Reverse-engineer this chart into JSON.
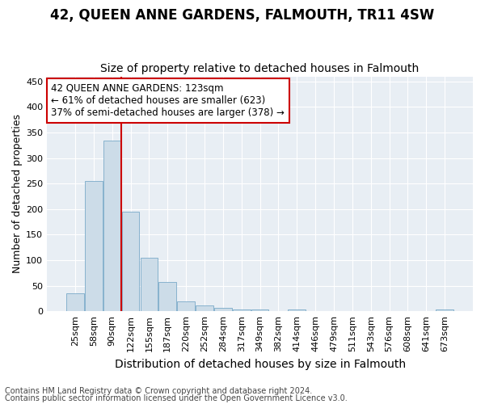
{
  "title": "42, QUEEN ANNE GARDENS, FALMOUTH, TR11 4SW",
  "subtitle": "Size of property relative to detached houses in Falmouth",
  "xlabel": "Distribution of detached houses by size in Falmouth",
  "ylabel": "Number of detached properties",
  "footnote1": "Contains HM Land Registry data © Crown copyright and database right 2024.",
  "footnote2": "Contains public sector information licensed under the Open Government Licence v3.0.",
  "bar_labels": [
    "25sqm",
    "58sqm",
    "90sqm",
    "122sqm",
    "155sqm",
    "187sqm",
    "220sqm",
    "252sqm",
    "284sqm",
    "317sqm",
    "349sqm",
    "382sqm",
    "414sqm",
    "446sqm",
    "479sqm",
    "511sqm",
    "543sqm",
    "576sqm",
    "608sqm",
    "641sqm",
    "673sqm"
  ],
  "bar_values": [
    35,
    255,
    335,
    195,
    105,
    57,
    20,
    11,
    7,
    4,
    4,
    0,
    3,
    0,
    0,
    0,
    0,
    0,
    0,
    0,
    4
  ],
  "bar_color": "#ccdce8",
  "bar_edge_color": "#7aaac8",
  "property_line_idx": 3,
  "property_line_color": "#cc0000",
  "annotation_line1": "42 QUEEN ANNE GARDENS: 123sqm",
  "annotation_line2": "← 61% of detached houses are smaller (623)",
  "annotation_line3": "37% of semi-detached houses are larger (378) →",
  "annotation_box_color": "#ffffff",
  "annotation_box_edge": "#cc0000",
  "ylim": [
    0,
    460
  ],
  "yticks": [
    0,
    50,
    100,
    150,
    200,
    250,
    300,
    350,
    400,
    450
  ],
  "fig_bg_color": "#ffffff",
  "plot_bg_color": "#e8eef4",
  "grid_color": "#ffffff",
  "title_fontsize": 12,
  "subtitle_fontsize": 10,
  "xlabel_fontsize": 10,
  "ylabel_fontsize": 9,
  "tick_fontsize": 8,
  "annot_fontsize": 8.5,
  "footnote_fontsize": 7
}
